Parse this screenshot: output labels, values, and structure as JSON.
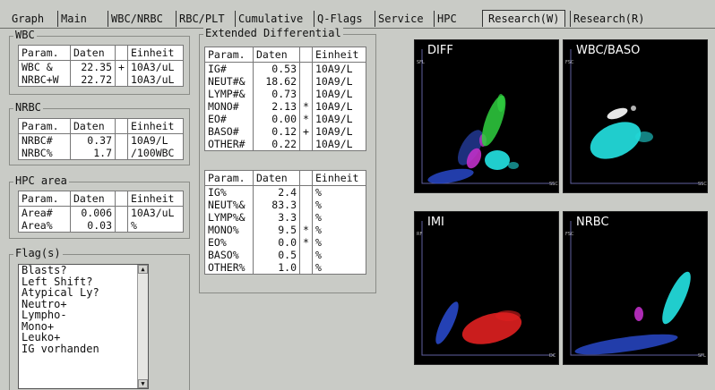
{
  "tabs": [
    {
      "label": "Graph",
      "active": false
    },
    {
      "label": "Main",
      "active": false
    },
    {
      "label": "WBC/NRBC",
      "active": false
    },
    {
      "label": "RBC/PLT",
      "active": false
    },
    {
      "label": "Cumulative",
      "active": false
    },
    {
      "label": "Q-Flags",
      "active": false
    },
    {
      "label": "Service",
      "active": false
    },
    {
      "label": "HPC",
      "active": false
    },
    {
      "label": "Research(W)",
      "active": true
    },
    {
      "label": "Research(R)",
      "active": false
    }
  ],
  "headers": {
    "param": "Param.",
    "daten": "Daten",
    "einheit": "Einheit"
  },
  "wbc": {
    "title": "WBC",
    "rows": [
      {
        "param": "WBC  &",
        "value": "22.35",
        "flag": "+",
        "unit": "10A3/uL"
      },
      {
        "param": "NRBC+W",
        "value": "22.72",
        "flag": "",
        "unit": "10A3/uL"
      }
    ]
  },
  "nrbc": {
    "title": "NRBC",
    "rows": [
      {
        "param": "NRBC#",
        "value": "0.37",
        "flag": "",
        "unit": "10A9/L"
      },
      {
        "param": "NRBC%",
        "value": "1.7",
        "flag": "",
        "unit": "/100WBC"
      }
    ]
  },
  "hpc": {
    "title": "HPC area",
    "rows": [
      {
        "param": "Area#",
        "value": "0.006",
        "flag": "",
        "unit": "10A3/uL"
      },
      {
        "param": "Area%",
        "value": "0.03",
        "flag": "",
        "unit": "%"
      }
    ]
  },
  "ext_diff": {
    "title": "Extended Differential",
    "abs_rows": [
      {
        "param": "IG#",
        "value": "0.53",
        "flag": "",
        "unit": "10A9/L"
      },
      {
        "param": "NEUT#&",
        "value": "18.62",
        "flag": "",
        "unit": "10A9/L"
      },
      {
        "param": "LYMP#&",
        "value": "0.73",
        "flag": "",
        "unit": "10A9/L"
      },
      {
        "param": "MONO#",
        "value": "2.13",
        "flag": "*",
        "unit": "10A9/L"
      },
      {
        "param": "EO#",
        "value": "0.00",
        "flag": "*",
        "unit": "10A9/L"
      },
      {
        "param": "BASO#",
        "value": "0.12",
        "flag": "+",
        "unit": "10A9/L"
      },
      {
        "param": "OTHER#",
        "value": "0.22",
        "flag": "",
        "unit": "10A9/L"
      }
    ],
    "pct_rows": [
      {
        "param": "IG%",
        "value": "2.4",
        "flag": "",
        "unit": "%"
      },
      {
        "param": "NEUT%&",
        "value": "83.3",
        "flag": "",
        "unit": "%"
      },
      {
        "param": "LYMP%&",
        "value": "3.3",
        "flag": "",
        "unit": "%"
      },
      {
        "param": "MONO%",
        "value": "9.5",
        "flag": "*",
        "unit": "%"
      },
      {
        "param": "EO%",
        "value": "0.0",
        "flag": "*",
        "unit": "%"
      },
      {
        "param": "BASO%",
        "value": "0.5",
        "flag": "",
        "unit": "%"
      },
      {
        "param": "OTHER%",
        "value": "1.0",
        "flag": "",
        "unit": "%"
      }
    ]
  },
  "flags": {
    "title": "Flag(s)",
    "items": [
      "Blasts?",
      "Left Shift?",
      "Atypical Ly?",
      "Neutro+",
      "Lympho-",
      "Mono+",
      "Leuko+",
      "IG vorhanden"
    ]
  },
  "plots": [
    {
      "title": "DIFF",
      "x_axis": "SSC",
      "y_axis": "SFL"
    },
    {
      "title": "WBC/BASO",
      "x_axis": "SSC",
      "y_axis": "FSC"
    },
    {
      "title": "IMI",
      "x_axis": "DC",
      "y_axis": "RF"
    },
    {
      "title": "NRBC",
      "x_axis": "SFL",
      "y_axis": "FSC"
    }
  ],
  "colors": {
    "background": "#c9cbc6",
    "plot_bg": "#000000",
    "cyan": "#22d8d8",
    "green": "#2fd040",
    "magenta": "#c030c8",
    "blue": "#2848c8",
    "red": "#e02020",
    "white": "#ffffff"
  }
}
